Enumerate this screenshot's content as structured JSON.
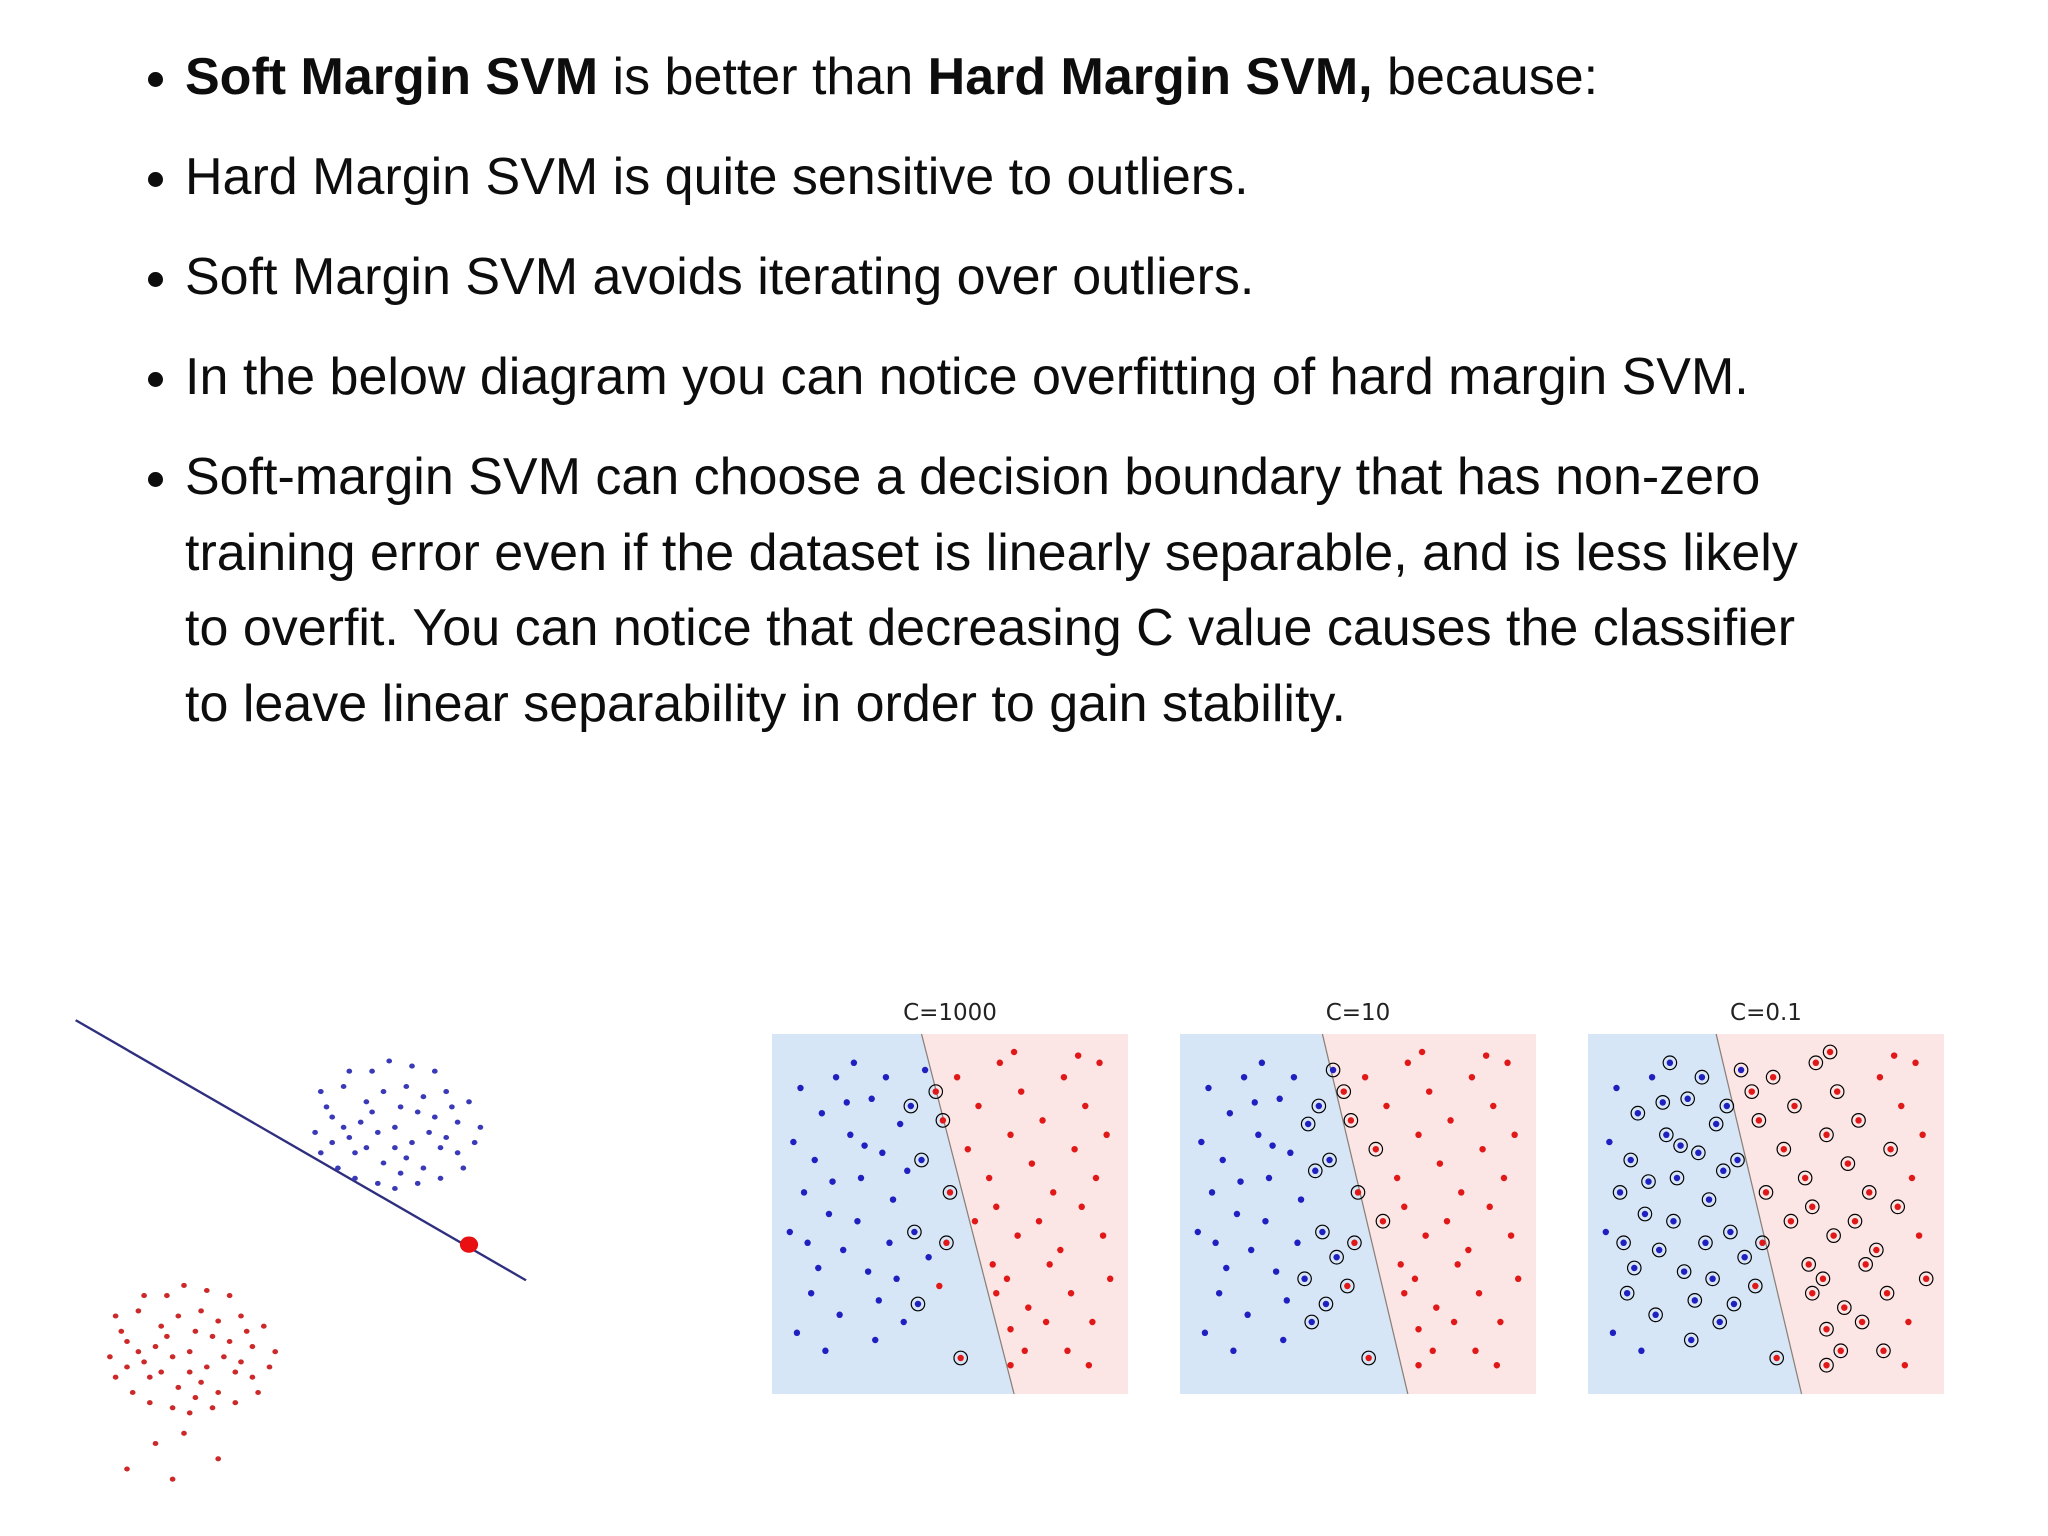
{
  "slide": {
    "bullets": [
      {
        "parts": [
          {
            "text": "Soft Margin SVM",
            "bold": true
          },
          {
            "text": " is better than ",
            "bold": false
          },
          {
            "text": "Hard Margin SVM,",
            "bold": true
          },
          {
            "text": " because:",
            "bold": false
          }
        ]
      },
      {
        "parts": [
          {
            "text": "Hard Margin SVM is quite sensitive to outliers.",
            "bold": false
          }
        ]
      },
      {
        "parts": [
          {
            "text": "Soft Margin SVM  avoids iterating over outliers.",
            "bold": false
          }
        ]
      },
      {
        "parts": [
          {
            "text": "In the below diagram you can notice overfitting of hard margin SVM.",
            "bold": false
          }
        ]
      },
      {
        "parts": [
          {
            "text": "Soft-margin SVM can choose a decision boundary that has non-zero training error even if the dataset is linearly separable, and is less likely to overfit. You can notice that decreasing C value causes the classifier to leave linear separability in order to gain stability.",
            "bold": false
          }
        ]
      }
    ]
  },
  "svm_points": {
    "blue": [
      [
        8,
        15
      ],
      [
        14,
        22
      ],
      [
        6,
        30
      ],
      [
        18,
        12
      ],
      [
        12,
        35
      ],
      [
        22,
        28
      ],
      [
        9,
        44
      ],
      [
        16,
        50
      ],
      [
        25,
        40
      ],
      [
        5,
        55
      ],
      [
        20,
        60
      ],
      [
        13,
        65
      ],
      [
        28,
        18
      ],
      [
        31,
        33
      ],
      [
        24,
        52
      ],
      [
        11,
        72
      ],
      [
        19,
        78
      ],
      [
        27,
        66
      ],
      [
        7,
        83
      ],
      [
        15,
        88
      ],
      [
        30,
        74
      ],
      [
        34,
        46
      ],
      [
        23,
        8
      ],
      [
        33,
        58
      ],
      [
        36,
        25
      ],
      [
        29,
        85
      ],
      [
        17,
        41
      ],
      [
        10,
        58
      ],
      [
        26,
        31
      ],
      [
        35,
        68
      ],
      [
        38,
        38
      ],
      [
        32,
        12
      ],
      [
        21,
        19
      ],
      [
        37,
        80
      ],
      [
        40,
        55
      ],
      [
        39,
        20
      ],
      [
        42,
        35
      ],
      [
        44,
        62
      ],
      [
        41,
        75
      ],
      [
        43,
        10
      ]
    ],
    "red": [
      [
        52,
        12
      ],
      [
        58,
        20
      ],
      [
        64,
        8
      ],
      [
        70,
        16
      ],
      [
        76,
        24
      ],
      [
        82,
        12
      ],
      [
        88,
        20
      ],
      [
        94,
        28
      ],
      [
        55,
        32
      ],
      [
        61,
        40
      ],
      [
        67,
        28
      ],
      [
        73,
        36
      ],
      [
        79,
        44
      ],
      [
        85,
        32
      ],
      [
        91,
        40
      ],
      [
        57,
        52
      ],
      [
        63,
        48
      ],
      [
        69,
        56
      ],
      [
        75,
        52
      ],
      [
        81,
        60
      ],
      [
        87,
        48
      ],
      [
        93,
        56
      ],
      [
        62,
        64
      ],
      [
        63,
        72
      ],
      [
        66,
        68
      ],
      [
        72,
        76
      ],
      [
        78,
        64
      ],
      [
        84,
        72
      ],
      [
        90,
        80
      ],
      [
        67,
        82
      ],
      [
        67,
        92
      ],
      [
        71,
        88
      ],
      [
        77,
        80
      ],
      [
        83,
        88
      ],
      [
        89,
        92
      ],
      [
        95,
        68
      ],
      [
        50,
        44
      ],
      [
        48,
        24
      ],
      [
        47,
        70
      ],
      [
        53,
        90
      ],
      [
        49,
        58
      ],
      [
        46,
        16
      ],
      [
        68,
        5
      ],
      [
        86,
        6
      ],
      [
        92,
        8
      ]
    ]
  },
  "chart_data": [
    {
      "type": "scatter",
      "name": "hard-margin-outlier-plot",
      "title": "",
      "xlim": [
        0,
        100
      ],
      "ylim": [
        0,
        100
      ],
      "background": "#ffffff",
      "grid": false,
      "axes": "hidden",
      "line": {
        "x1": 1,
        "y1": 2,
        "x2": 80,
        "y2": 53,
        "color": "#2f2f7f"
      },
      "series": [
        {
          "class": "blue",
          "name": "blue-cluster",
          "color": "#3a3ab8",
          "size": 0.5,
          "points": [
            [
              57,
              23
            ],
            [
              52,
              18
            ],
            [
              61,
              20
            ],
            [
              49,
              25
            ],
            [
              65,
              27
            ],
            [
              55,
              30
            ],
            [
              59,
              15
            ],
            [
              46,
              21
            ],
            [
              68,
              22
            ],
            [
              53,
              12
            ],
            [
              62,
              31
            ],
            [
              44,
              28
            ],
            [
              57,
              35
            ],
            [
              66,
              16
            ],
            [
              50,
              33
            ],
            [
              71,
              26
            ],
            [
              48,
              15
            ],
            [
              60,
              26
            ],
            [
              54,
              24
            ],
            [
              64,
              12
            ],
            [
              45,
              19
            ],
            [
              69,
              31
            ],
            [
              52,
              27
            ],
            [
              58,
              19
            ],
            [
              63,
              24
            ],
            [
              47,
              31
            ],
            [
              56,
              10
            ],
            [
              67,
              19
            ],
            [
              51,
              22
            ],
            [
              61,
              34
            ],
            [
              43,
              24
            ],
            [
              70,
              18
            ],
            [
              55,
              16
            ],
            [
              59,
              29
            ],
            [
              49,
              12
            ],
            [
              65,
              33
            ],
            [
              53,
              20
            ],
            [
              62,
              17
            ],
            [
              46,
              26
            ],
            [
              58,
              32
            ],
            [
              68,
              28
            ],
            [
              50,
              28
            ],
            [
              64,
              21
            ],
            [
              44,
              16
            ],
            [
              57,
              27
            ],
            [
              60,
              11
            ],
            [
              72,
              23
            ],
            [
              54,
              34
            ],
            [
              48,
              23
            ],
            [
              66,
              25
            ]
          ]
        },
        {
          "class": "red",
          "name": "red-cluster",
          "color": "#cc2a2a",
          "size": 0.5,
          "points": [
            [
              21,
              67
            ],
            [
              16,
              62
            ],
            [
              25,
              64
            ],
            [
              13,
              69
            ],
            [
              29,
              71
            ],
            [
              19,
              74
            ],
            [
              23,
              59
            ],
            [
              10,
              65
            ],
            [
              32,
              66
            ],
            [
              17,
              56
            ],
            [
              26,
              75
            ],
            [
              8,
              72
            ],
            [
              21,
              79
            ],
            [
              30,
              60
            ],
            [
              14,
              77
            ],
            [
              35,
              70
            ],
            [
              12,
              59
            ],
            [
              24,
              70
            ],
            [
              18,
              68
            ],
            [
              28,
              56
            ],
            [
              9,
              63
            ],
            [
              33,
              75
            ],
            [
              16,
              71
            ],
            [
              22,
              63
            ],
            [
              27,
              68
            ],
            [
              11,
              75
            ],
            [
              20,
              54
            ],
            [
              31,
              63
            ],
            [
              15,
              66
            ],
            [
              25,
              78
            ],
            [
              7,
              68
            ],
            [
              34,
              62
            ],
            [
              19,
              60
            ],
            [
              23,
              73
            ],
            [
              13,
              56
            ],
            [
              29,
              77
            ],
            [
              17,
              64
            ],
            [
              26,
              61
            ],
            [
              10,
              70
            ],
            [
              22,
              76
            ],
            [
              32,
              72
            ],
            [
              14,
              72
            ],
            [
              28,
              65
            ],
            [
              8,
              60
            ],
            [
              21,
              71
            ],
            [
              24,
              55
            ],
            [
              36,
              67
            ],
            [
              18,
              78
            ],
            [
              12,
              67
            ],
            [
              30,
              69
            ],
            [
              20,
              83
            ],
            [
              15,
              85
            ],
            [
              26,
              88
            ],
            [
              10,
              90
            ],
            [
              18,
              92
            ]
          ]
        },
        {
          "class": "outlier",
          "name": "red-outlier-on-line",
          "color": "#e81010",
          "size": 1.6,
          "points": [
            [
              70,
              46
            ]
          ]
        }
      ]
    },
    {
      "type": "scatter",
      "name": "soft-margin-panel-c1000",
      "title": "C=1000",
      "xlim": [
        0,
        100
      ],
      "ylim": [
        0,
        100
      ],
      "grid": false,
      "axes": "hidden",
      "points_ref": "svm_points",
      "boundary": {
        "x_top": 42,
        "x_bottom": 68
      },
      "regions": {
        "left_color": "#d7e6f6",
        "right_color": "#fbe5e5",
        "line_color": "#8a8078"
      },
      "series": [
        {
          "class": "blue",
          "color": "#2020c0",
          "size": 0.9,
          "ring": "#000000",
          "support_vectors": [
            34,
            35,
            36,
            38
          ]
        },
        {
          "class": "red",
          "color": "#e01818",
          "size": 0.9,
          "ring": "#000000",
          "support_vectors": [
            36,
            37,
            39,
            40,
            41
          ]
        }
      ]
    },
    {
      "type": "scatter",
      "name": "soft-margin-panel-c10",
      "title": "C=10",
      "xlim": [
        0,
        100
      ],
      "ylim": [
        0,
        100
      ],
      "grid": false,
      "axes": "hidden",
      "points_ref": "svm_points",
      "boundary": {
        "x_top": 40,
        "x_bottom": 64
      },
      "regions": {
        "left_color": "#d7e6f6",
        "right_color": "#fbe5e5",
        "line_color": "#8a8078"
      },
      "series": [
        {
          "class": "blue",
          "color": "#2020c0",
          "size": 0.9,
          "ring": "#000000",
          "support_vectors": [
            24,
            29,
            30,
            33,
            34,
            35,
            36,
            37,
            38,
            39
          ]
        },
        {
          "class": "red",
          "color": "#e01818",
          "size": 0.9,
          "ring": "#000000",
          "support_vectors": [
            8,
            15,
            36,
            37,
            38,
            39,
            40,
            41
          ]
        }
      ]
    },
    {
      "type": "scatter",
      "name": "soft-margin-panel-c0.1",
      "title": "C=0.1",
      "xlim": [
        0,
        100
      ],
      "ylim": [
        0,
        100
      ],
      "grid": false,
      "axes": "hidden",
      "points_ref": "svm_points",
      "boundary": {
        "x_top": 36,
        "x_bottom": 60
      },
      "regions": {
        "left_color": "#d7e6f6",
        "right_color": "#fbe5e5",
        "line_color": "#8a8078"
      },
      "series": [
        {
          "class": "blue",
          "color": "#2020c0",
          "size": 0.9,
          "ring": "#000000",
          "support_vectors": [
            1,
            4,
            5,
            6,
            7,
            8,
            10,
            11,
            12,
            13,
            14,
            15,
            16,
            17,
            20,
            21,
            22,
            23,
            24,
            25,
            26,
            27,
            28,
            29,
            30,
            31,
            32,
            33,
            34,
            35,
            36,
            37,
            38,
            39
          ]
        },
        {
          "class": "red",
          "color": "#e01818",
          "size": 0.9,
          "ring": "#000000",
          "support_vectors": [
            0,
            1,
            2,
            3,
            4,
            8,
            9,
            10,
            11,
            12,
            13,
            15,
            16,
            17,
            18,
            19,
            20,
            22,
            23,
            24,
            25,
            26,
            27,
            29,
            30,
            31,
            32,
            33,
            35,
            36,
            37,
            38,
            39,
            40,
            41,
            42
          ]
        }
      ]
    }
  ]
}
